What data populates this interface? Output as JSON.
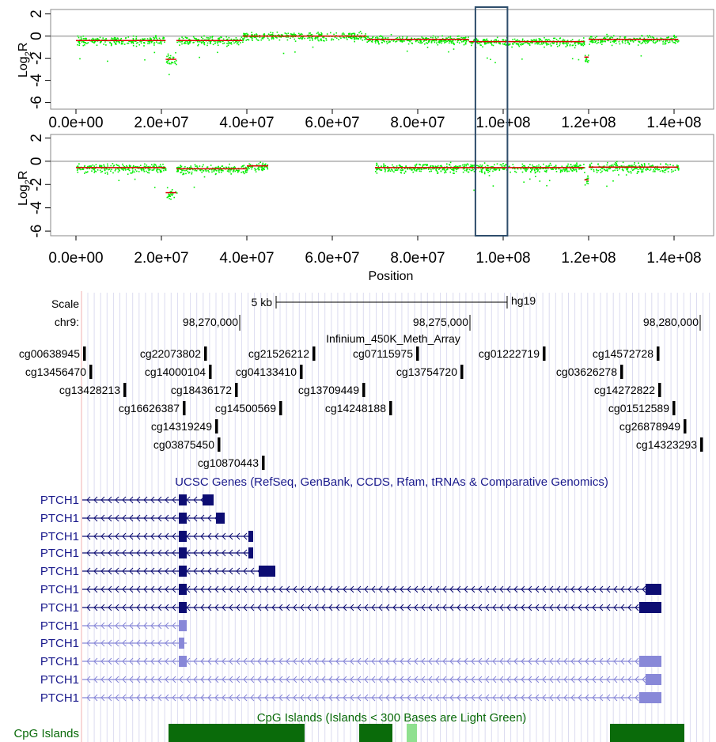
{
  "chart_data": [
    {
      "type": "scatter",
      "ylabel_base": "Log",
      "ylabel_sub": "2",
      "ylabel_tail": "R",
      "yticks": [
        "2",
        "0",
        "-2",
        "-4",
        "-6"
      ],
      "ytick_values": [
        2,
        0,
        -2,
        -4,
        -6
      ],
      "ylim": [
        -6.6,
        2.4
      ],
      "xticks": [
        "0.0e+00",
        "2.0e+07",
        "4.0e+07",
        "6.0e+07",
        "8.0e+07",
        "1.0e+08",
        "1.2e+08",
        "1.4e+08"
      ],
      "xtick_values": [
        0,
        20000000,
        40000000,
        60000000,
        80000000,
        100000000,
        120000000,
        140000000
      ],
      "xlim": [
        -5000000,
        151000000
      ],
      "segments": [
        {
          "x0": 0,
          "x1": 21000000,
          "y": -0.4
        },
        {
          "x0": 21000000,
          "x1": 23500000,
          "y": -2.1
        },
        {
          "x0": 23500000,
          "x1": 39000000,
          "y": -0.4
        },
        {
          "x0": 39000000,
          "x1": 68000000,
          "y": 0.0
        },
        {
          "x0": 68000000,
          "x1": 92000000,
          "y": -0.3
        },
        {
          "x0": 92000000,
          "x1": 119000000,
          "y": -0.5
        },
        {
          "x0": 119000000,
          "x1": 120000000,
          "y": -1.9
        },
        {
          "x0": 120000000,
          "x1": 141000000,
          "y": -0.3
        }
      ]
    },
    {
      "type": "scatter",
      "ylabel_base": "Log",
      "ylabel_sub": "2",
      "ylabel_tail": "R",
      "yticks": [
        "2",
        "0",
        "-2",
        "-4",
        "-6"
      ],
      "ytick_values": [
        2,
        0,
        -2,
        -4,
        -6
      ],
      "ylim": [
        -6.4,
        2.3
      ],
      "xticks": [
        "0.0e+00",
        "2.0e+07",
        "4.0e+07",
        "6.0e+07",
        "8.0e+07",
        "1.0e+08",
        "1.2e+08",
        "1.4e+08"
      ],
      "xtick_values": [
        0,
        20000000,
        40000000,
        60000000,
        80000000,
        100000000,
        120000000,
        140000000
      ],
      "xlim": [
        -5000000,
        151000000
      ],
      "xlabel": "Position",
      "segments": [
        {
          "x0": 0,
          "x1": 21000000,
          "y": -0.55
        },
        {
          "x0": 21000000,
          "x1": 23500000,
          "y": -2.7
        },
        {
          "x0": 23500000,
          "x1": 40000000,
          "y": -0.65
        },
        {
          "x0": 40000000,
          "x1": 45000000,
          "y": -0.4
        },
        {
          "x0": 70000000,
          "x1": 119000000,
          "y": -0.55
        },
        {
          "x0": 119000000,
          "x1": 120000000,
          "y": -1.6
        },
        {
          "x0": 120000000,
          "x1": 141000000,
          "y": -0.5
        }
      ]
    }
  ],
  "highlight_region": {
    "x0": 93500000,
    "x1": 101000000
  },
  "browser": {
    "scale_label": "Scale",
    "scale_value": "5 kb",
    "assembly": "hg19",
    "chrom_label": "chr9:",
    "positions": [
      "98,270,000",
      "98,275,000",
      "98,280,000"
    ],
    "track_infinium": "Infinium_450K_Meth_Array",
    "probes": [
      "cg00638945",
      "cg22073802",
      "cg21526212",
      "cg07115975",
      "cg01222719",
      "cg14572728",
      "cg13456470",
      "cg14000104",
      "cg04133410",
      "cg13754720",
      "cg03626278",
      "cg13428213",
      "cg18436172",
      "cg13709449",
      "cg14272822",
      "cg16626387",
      "cg14500569",
      "cg14248188",
      "cg01512589",
      "cg14319249",
      "cg26878949",
      "cg03875450",
      "cg14323293",
      "cg10870443"
    ],
    "track_genes": "UCSC Genes (RefSeq, GenBank, CCDS, Rfam, tRNAs & Comparative Genomics)",
    "gene_names": [
      "PTCH1",
      "PTCH1",
      "PTCH1",
      "PTCH1",
      "PTCH1",
      "PTCH1",
      "PTCH1",
      "PTCH1",
      "PTCH1",
      "PTCH1",
      "PTCH1",
      "PTCH1"
    ],
    "track_cpg": "CpG Islands (Islands < 300 Bases are Light Green)",
    "cpg_label": "CpG Islands",
    "colors": {
      "gene_dark": "#0d0d73",
      "gene_light": "#8888d8",
      "cpg_dark": "#0a6b0a",
      "cpg_light": "#8fe08f",
      "frame": "#2e4d6b",
      "points": "#00ee00",
      "segment": "#dd0000"
    }
  }
}
